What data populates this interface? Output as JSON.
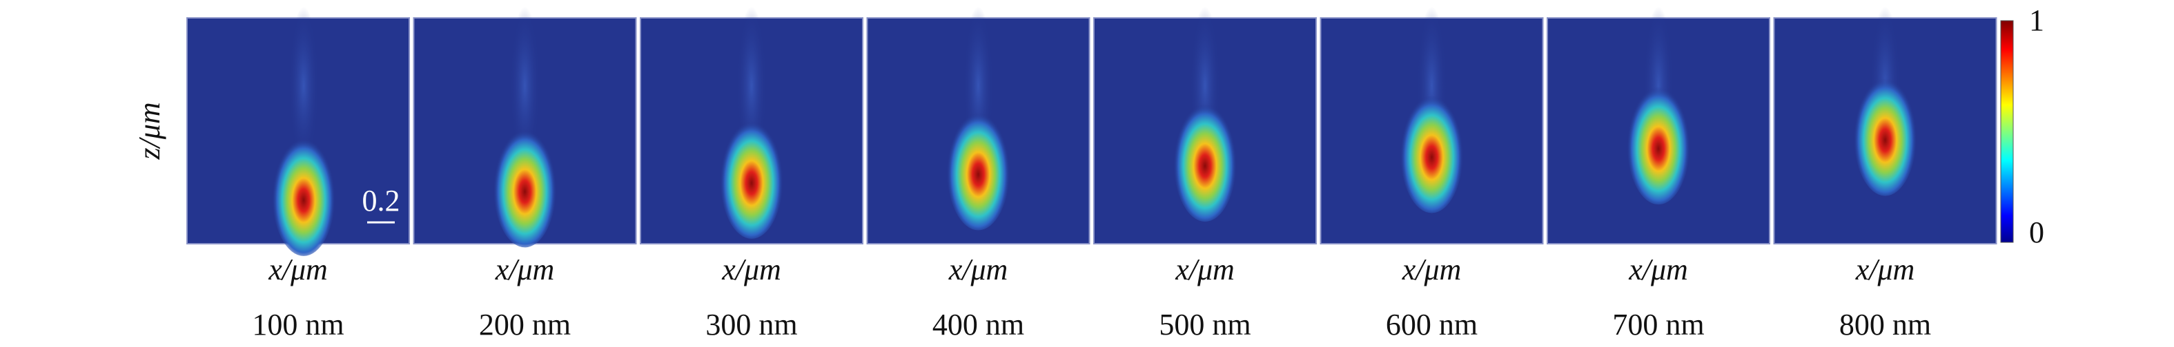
{
  "y_label": "z/μm",
  "panels": [
    {
      "x_label": "x/μm",
      "caption": "100 nm"
    },
    {
      "x_label": "x/μm",
      "caption": "200 nm"
    },
    {
      "x_label": "x/μm",
      "caption": "300 nm"
    },
    {
      "x_label": "x/μm",
      "caption": "400 nm"
    },
    {
      "x_label": "x/μm",
      "caption": "500 nm"
    },
    {
      "x_label": "x/μm",
      "caption": "600 nm"
    },
    {
      "x_label": "x/μm",
      "caption": "700 nm"
    },
    {
      "x_label": "x/μm",
      "caption": "800 nm"
    }
  ],
  "scale_bar": "0.2",
  "colorbar": {
    "max": "1",
    "min": "0"
  }
}
